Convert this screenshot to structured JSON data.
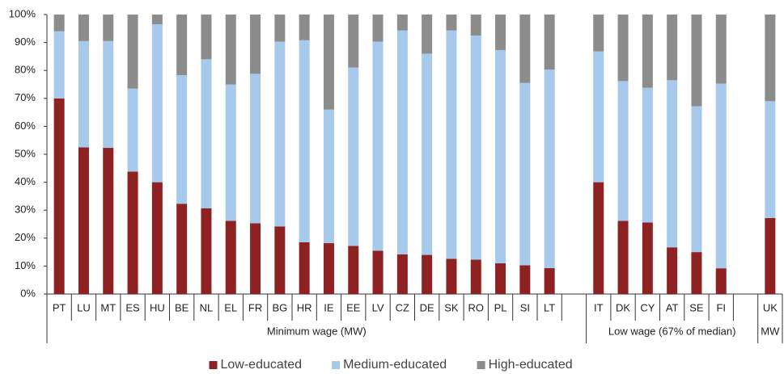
{
  "chart_data": {
    "type": "stacked_bar",
    "categories": [
      "PT",
      "LU",
      "MT",
      "ES",
      "HU",
      "BE",
      "NL",
      "EL",
      "FR",
      "BG",
      "HR",
      "IE",
      "EE",
      "LV",
      "CZ",
      "DE",
      "SK",
      "RO",
      "PL",
      "SI",
      "LT",
      null,
      "IT",
      "DK",
      "CY",
      "AT",
      "SE",
      "FI",
      null,
      "UK"
    ],
    "groups": [
      "Minimum wage (MW)",
      "Low wage (67% of median)",
      "MW"
    ],
    "series": [
      {
        "name": "Low-educated",
        "color": "#8e2121",
        "values": [
          70,
          52.5,
          52.3,
          43.8,
          40,
          32.3,
          30.7,
          26.2,
          25.3,
          24.2,
          18.5,
          18.2,
          17.2,
          15.5,
          14.2,
          14,
          12.6,
          12.3,
          11,
          10.3,
          9.3,
          null,
          40,
          26.2,
          25.6,
          16.7,
          15,
          9.2,
          null,
          27.2
        ]
      },
      {
        "name": "Medium-educated",
        "color": "#a6c9ec",
        "values": [
          24,
          38,
          38.2,
          29.7,
          56.5,
          46,
          53.3,
          48.8,
          53.5,
          66.1,
          72.3,
          47.8,
          63.8,
          74.8,
          80.1,
          72,
          81.7,
          80.2,
          76.3,
          65.2,
          71,
          null,
          46.8,
          50,
          48.2,
          59.8,
          52.2,
          66.1,
          null,
          41.8
        ]
      },
      {
        "name": "High-educated",
        "color": "#8c8c8c",
        "values": [
          6,
          9.5,
          9.5,
          26.5,
          3.5,
          21.7,
          16,
          25,
          21.2,
          9.7,
          9.2,
          34,
          19,
          9.7,
          5.7,
          14,
          5.7,
          7.5,
          12.7,
          24.5,
          19.7,
          null,
          13.2,
          23.8,
          26.2,
          23.5,
          32.8,
          24.7,
          null,
          31
        ]
      }
    ],
    "ylim": [
      0,
      100
    ],
    "yticks": [
      {
        "value": 0,
        "label": "0%"
      },
      {
        "value": 10,
        "label": "10%"
      },
      {
        "value": 20,
        "label": "20%"
      },
      {
        "value": 30,
        "label": "30%"
      },
      {
        "value": 40,
        "label": "40%"
      },
      {
        "value": 50,
        "label": "50%"
      },
      {
        "value": 60,
        "label": "60%"
      },
      {
        "value": 70,
        "label": "70%"
      },
      {
        "value": 80,
        "label": "80%"
      },
      {
        "value": 90,
        "label": "90%"
      },
      {
        "value": 100,
        "label": "100%"
      }
    ]
  }
}
